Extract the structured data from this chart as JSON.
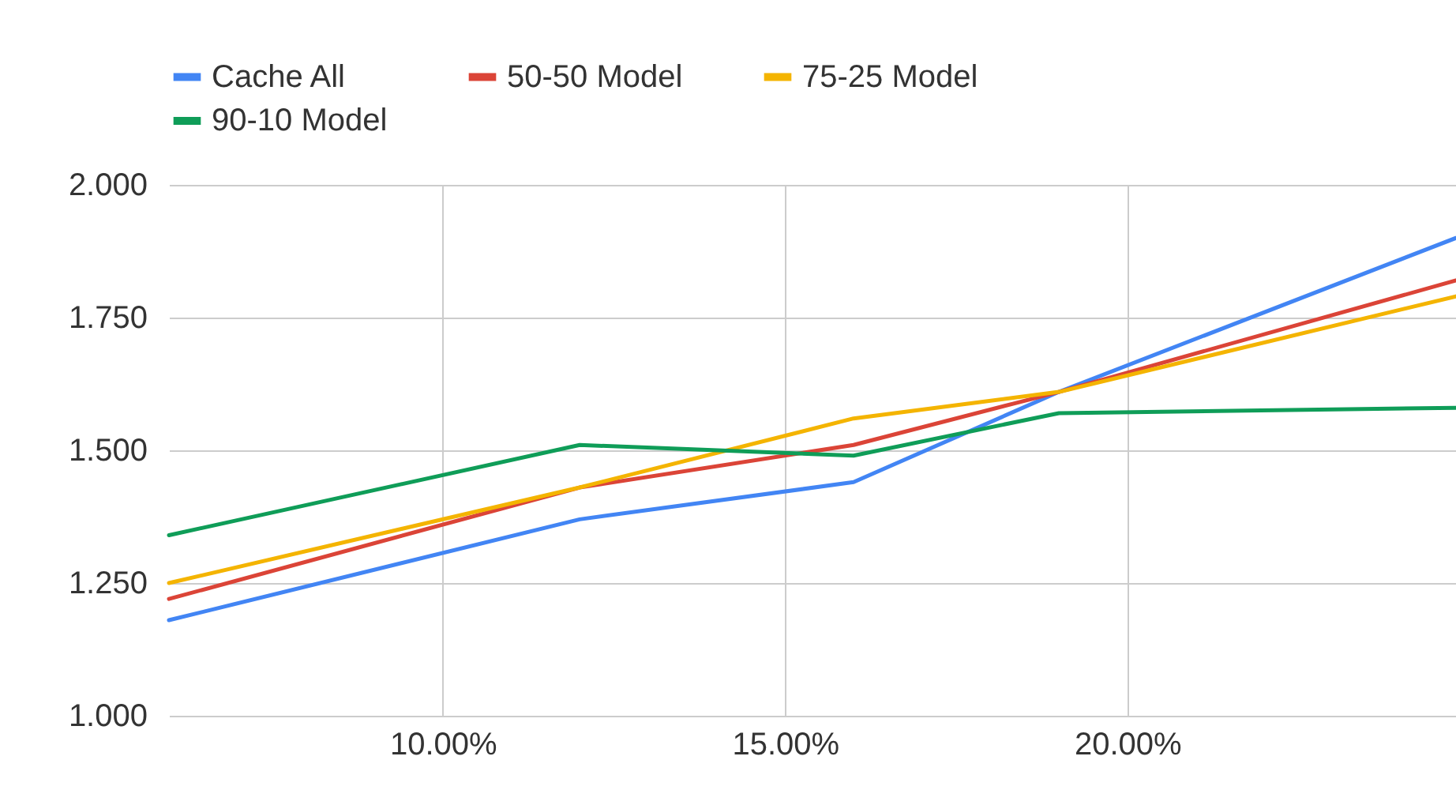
{
  "chart_data": {
    "type": "line",
    "x": [
      6,
      12,
      16,
      19,
      24.8
    ],
    "series": [
      {
        "name": "Cache All",
        "color": "#4285f4",
        "values": [
          1.18,
          1.37,
          1.44,
          1.61,
          1.9
        ]
      },
      {
        "name": "50-50 Model",
        "color": "#db4437",
        "values": [
          1.22,
          1.43,
          1.51,
          1.61,
          1.82
        ]
      },
      {
        "name": "75-25 Model",
        "color": "#f4b400",
        "values": [
          1.25,
          1.43,
          1.56,
          1.61,
          1.79
        ]
      },
      {
        "name": "90-10 Model",
        "color": "#0f9d58",
        "values": [
          1.34,
          1.51,
          1.49,
          1.57,
          1.58
        ]
      }
    ],
    "xlim": [
      6,
      24.8
    ],
    "xticks": [
      {
        "value": 10,
        "label": "10.00%"
      },
      {
        "value": 15,
        "label": "15.00%"
      },
      {
        "value": 20,
        "label": "20.00%"
      }
    ],
    "ylim": [
      1,
      2
    ],
    "yticks": [
      {
        "value": 1,
        "label": "1.000"
      },
      {
        "value": 1.25,
        "label": "1.250"
      },
      {
        "value": 1.5,
        "label": "1.500"
      },
      {
        "value": 1.75,
        "label": "1.750"
      },
      {
        "value": 2,
        "label": "2.000"
      }
    ],
    "grid": true,
    "legend": "top",
    "line_style": "solid",
    "marker": "none"
  }
}
